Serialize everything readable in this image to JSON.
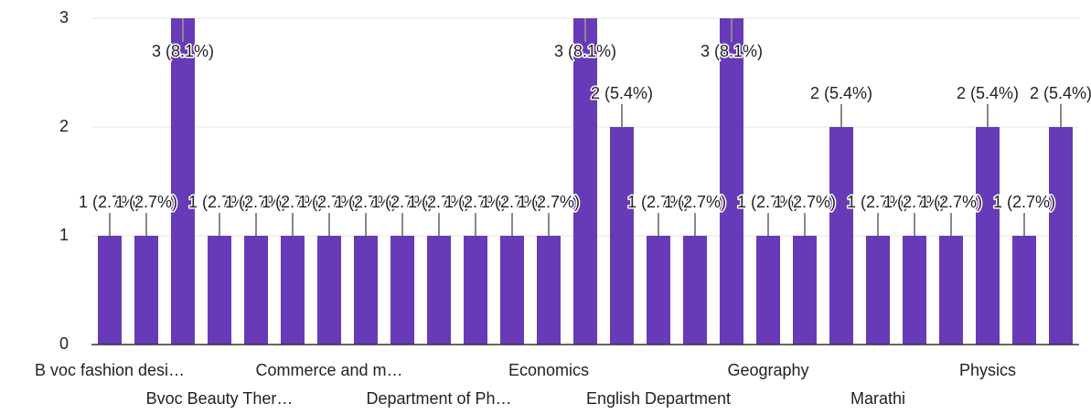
{
  "chart_data": {
    "type": "bar",
    "categories": [
      "B voc fashion desi…",
      null,
      null,
      "Bvoc Beauty Ther…",
      null,
      null,
      "Commerce and m…",
      null,
      null,
      "Department of Ph…",
      null,
      null,
      "Economics",
      null,
      null,
      "English Department",
      null,
      null,
      "Geography",
      null,
      null,
      "Marathi",
      null,
      null,
      "Physics",
      null,
      null
    ],
    "values": [
      1,
      1,
      3,
      1,
      1,
      1,
      1,
      1,
      1,
      1,
      1,
      1,
      1,
      3,
      2,
      1,
      1,
      3,
      1,
      1,
      2,
      1,
      1,
      1,
      2,
      1,
      2
    ],
    "value_labels": [
      "1 (2.7%)",
      "1 (2.7%)",
      "3 (8.1%)",
      "1 (2.7%)",
      "1 (2.7%)",
      "1 (2.7%)",
      "1 (2.7%)",
      "1 (2.7%)",
      "1 (2.7%)",
      "1 (2.7%)",
      "1 (2.7%)",
      "1 (2.7%)",
      "1 (2.7%)",
      "3 (8.1%)",
      "2 (5.4%)",
      "1 (2.7%)",
      "1 (2.7%)",
      "3 (8.1%)",
      "1 (2.7%)",
      "1 (2.7%)",
      "2 (5.4%)",
      "1 (2.7%)",
      "1 (2.7%)",
      "1 (2.7%)",
      "2 (5.4%)",
      "1 (2.7%)",
      "2 (5.4%)"
    ],
    "color": "#673ab7",
    "ylim": [
      0,
      3
    ],
    "yticks": [
      0,
      1,
      2,
      3
    ],
    "grid": true
  }
}
